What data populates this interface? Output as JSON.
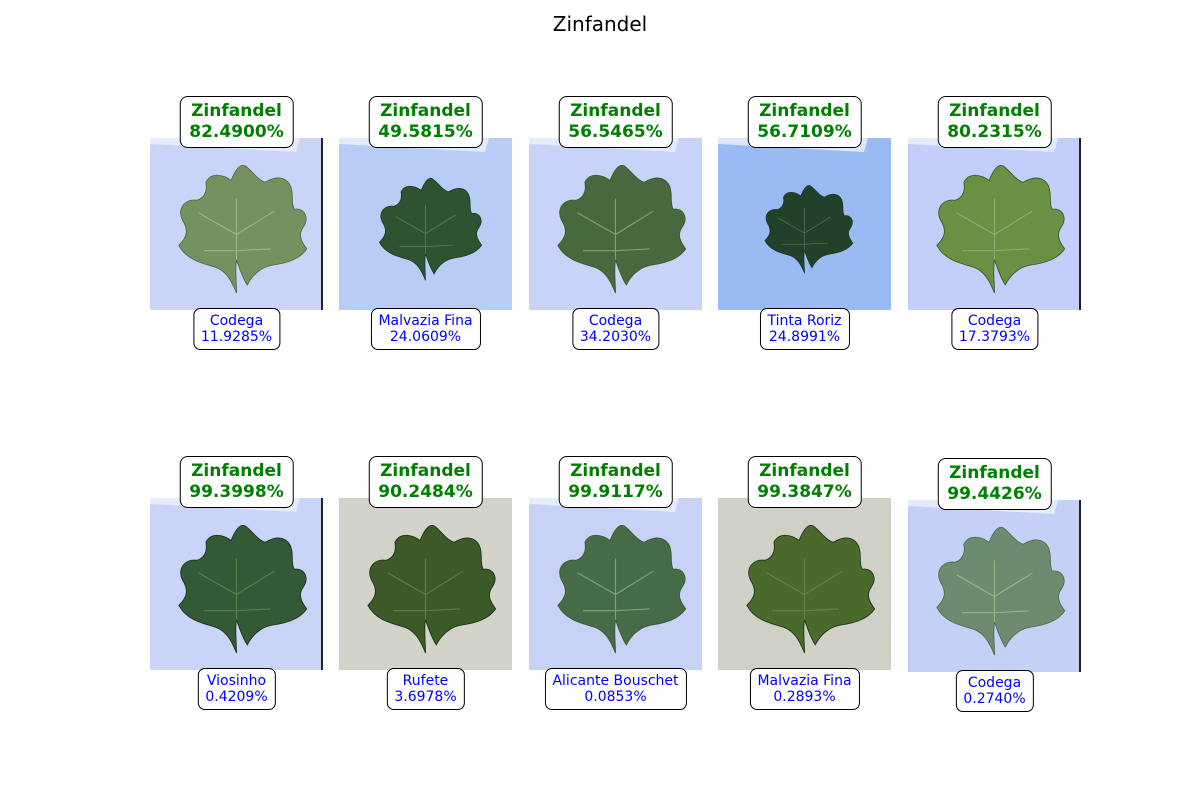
{
  "figure": {
    "title": "Zinfandel"
  },
  "cells": [
    {
      "pred_label": "Zinfandel",
      "pred_conf": "82.4900%",
      "alt_label": "Codega",
      "alt_conf": "11.9285%",
      "bg": "#c9d4f8",
      "leaf": "#557a3d",
      "style": "powdery"
    },
    {
      "pred_label": "Zinfandel",
      "pred_conf": "49.5815%",
      "alt_label": "Malvazia Fina",
      "alt_conf": "24.0609%",
      "bg": "#b7cdf5",
      "leaf": "#2f5230",
      "style": "dark"
    },
    {
      "pred_label": "Zinfandel",
      "pred_conf": "56.5465%",
      "alt_label": "Codega",
      "alt_conf": "34.2030%",
      "bg": "#c7d3f8",
      "leaf": "#48683d",
      "style": "medium"
    },
    {
      "pred_label": "Zinfandel",
      "pred_conf": "56.7109%",
      "alt_label": "Tinta Roriz",
      "alt_conf": "24.8991%",
      "bg": "#99baf2",
      "leaf": "#22402a",
      "style": "dark"
    },
    {
      "pred_label": "Zinfandel",
      "pred_conf": "80.2315%",
      "alt_label": "Codega",
      "alt_conf": "17.3793%",
      "bg": "#c3cefa",
      "leaf": "#6a9043",
      "style": "light"
    },
    {
      "pred_label": "Zinfandel",
      "pred_conf": "99.3998%",
      "alt_label": "Viosinho",
      "alt_conf": "0.4209%",
      "bg": "#c9d4f8",
      "leaf": "#335a36",
      "style": "dark"
    },
    {
      "pred_label": "Zinfandel",
      "pred_conf": "90.2484%",
      "alt_label": "Rufete",
      "alt_conf": "3.6978%",
      "bg": "#d7d6cb",
      "leaf": "#3b5a28",
      "style": "deep"
    },
    {
      "pred_label": "Zinfandel",
      "pred_conf": "99.9117%",
      "alt_label": "Alicante Bouschet",
      "alt_conf": "0.0853%",
      "bg": "#c8d2f6",
      "leaf": "#466b48",
      "style": "medium"
    },
    {
      "pred_label": "Zinfandel",
      "pred_conf": "99.3847%",
      "alt_label": "Malvazia Fina",
      "alt_conf": "0.2893%",
      "bg": "#d3d2c8",
      "leaf": "#4a6a2c",
      "style": "deep"
    },
    {
      "pred_label": "Zinfandel",
      "pred_conf": "99.4426%",
      "alt_label": "Codega",
      "alt_conf": "0.2740%",
      "bg": "#c4d0f6",
      "leaf": "#4d7350",
      "style": "powdery"
    }
  ]
}
